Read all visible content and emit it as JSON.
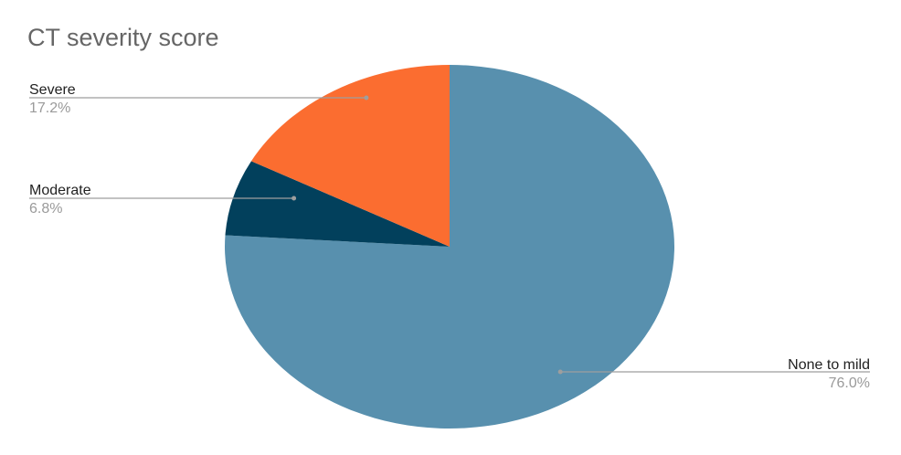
{
  "chart_data": {
    "type": "pie",
    "title": "CT severity score",
    "slices": [
      {
        "label": "None to mild",
        "value": 76.0,
        "display": "76.0%",
        "color": "#5890ae"
      },
      {
        "label": "Moderate",
        "value": 6.8,
        "display": "6.8%",
        "color": "#02405c"
      },
      {
        "label": "Severe",
        "value": 17.2,
        "display": "17.2%",
        "color": "#fb6d30"
      }
    ],
    "start_angle_deg": 0,
    "direction": "clockwise",
    "legend": "none",
    "labels": "outside with leader lines"
  }
}
